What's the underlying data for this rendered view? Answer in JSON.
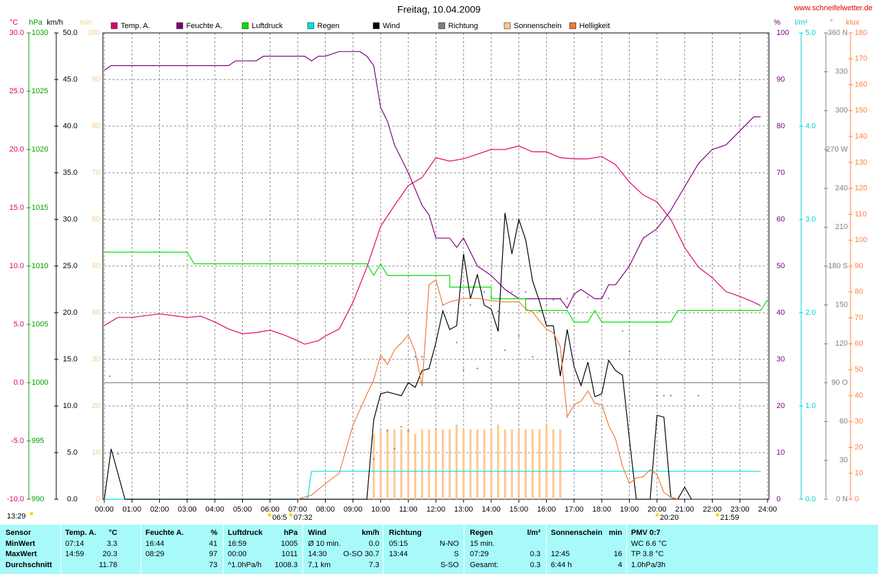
{
  "chart_data": {
    "type": "line",
    "title": "Freitag, 10.04.2009",
    "source": "www.schneifelwetter.de",
    "grid": true,
    "grid_axis": "km/h",
    "xlim": [
      0,
      24
    ],
    "xticks": [
      {
        "value": 0,
        "label": "00:00"
      },
      {
        "value": 1,
        "label": "01:00"
      },
      {
        "value": 2,
        "label": "02:00"
      },
      {
        "value": 3,
        "label": "03:00"
      },
      {
        "value": 4,
        "label": "04:00"
      },
      {
        "value": 5,
        "label": "05:00"
      },
      {
        "value": 6,
        "label": "06:00"
      },
      {
        "value": 7,
        "label": "07:00"
      },
      {
        "value": 8,
        "label": "08:00"
      },
      {
        "value": 9,
        "label": "09:00"
      },
      {
        "value": 10,
        "label": "10:00"
      },
      {
        "value": 11,
        "label": "11:00"
      },
      {
        "value": 12,
        "label": "12:00"
      },
      {
        "value": 13,
        "label": "13:00"
      },
      {
        "value": 14,
        "label": "14:00"
      },
      {
        "value": 15,
        "label": "15:00"
      },
      {
        "value": 16,
        "label": "16:00"
      },
      {
        "value": 17,
        "label": "17:00"
      },
      {
        "value": 18,
        "label": "18:00"
      },
      {
        "value": 19,
        "label": "19:00"
      },
      {
        "value": 20,
        "label": "20:00"
      },
      {
        "value": 21,
        "label": "21:00"
      },
      {
        "value": 22,
        "label": "22:00"
      },
      {
        "value": 23,
        "label": "23:00"
      },
      {
        "value": 24,
        "label": "24:00"
      }
    ],
    "axes": [
      {
        "label": "°C",
        "color": "#e00070",
        "zero_line": true,
        "ylim": [
          -10,
          30
        ],
        "yticks": [
          {
            "value": -10,
            "label": "-10.0"
          },
          {
            "value": -5,
            "label": "-5.0"
          },
          {
            "value": 0,
            "label": "0.0"
          },
          {
            "value": 5,
            "label": "5.0"
          },
          {
            "value": 10,
            "label": "10.0"
          },
          {
            "value": 15,
            "label": "15.0"
          },
          {
            "value": 20,
            "label": "20.0"
          },
          {
            "value": 25,
            "label": "25.0"
          },
          {
            "value": 30,
            "label": "30.0"
          }
        ]
      },
      {
        "label": "hPa",
        "color": "#00a000",
        "ylim": [
          990,
          1030
        ],
        "yticks": [
          990,
          995,
          1000,
          1005,
          1010,
          1015,
          1020,
          1025,
          1030
        ]
      },
      {
        "label": "km/h",
        "color": "#000000",
        "ylim": [
          0,
          50
        ],
        "yticks": [
          {
            "value": 0,
            "label": "0.0"
          },
          {
            "value": 5,
            "label": "5.0"
          },
          {
            "value": 10,
            "label": "10.0"
          },
          {
            "value": 15,
            "label": "15.0"
          },
          {
            "value": 20,
            "label": "20.0"
          },
          {
            "value": 25,
            "label": "25.0"
          },
          {
            "value": 30,
            "label": "30.0"
          },
          {
            "value": 35,
            "label": "35.0"
          },
          {
            "value": 40,
            "label": "40.0"
          },
          {
            "value": 45,
            "label": "45.0"
          },
          {
            "value": 50,
            "label": "50.0"
          }
        ]
      },
      {
        "label": "min",
        "color": "#f8c890",
        "ylim": [
          0,
          100
        ],
        "yticks": [
          0,
          10,
          20,
          30,
          40,
          50,
          60,
          70,
          80,
          90,
          100
        ]
      },
      {
        "label": "%",
        "color": "#800080",
        "ylim": [
          0,
          100
        ],
        "yticks": [
          0,
          10,
          20,
          30,
          40,
          50,
          60,
          70,
          80,
          90,
          100
        ]
      },
      {
        "label": "l/m²",
        "color": "#00d0d0",
        "ylim": [
          0,
          5
        ],
        "yticks": [
          {
            "value": 0,
            "label": "0.0"
          },
          {
            "value": 1,
            "label": "1.0"
          },
          {
            "value": 2,
            "label": "2.0"
          },
          {
            "value": 3,
            "label": "3.0"
          },
          {
            "value": 4,
            "label": "4.0"
          },
          {
            "value": 5,
            "label": "5.0"
          }
        ]
      },
      {
        "label": "°",
        "color": "#808080",
        "ylim": [
          0,
          360
        ],
        "yticks": [
          {
            "value": 0,
            "label": "0 N"
          },
          30,
          60,
          {
            "value": 90,
            "label": "90 O"
          },
          120,
          150,
          {
            "value": 180,
            "label": "180 S"
          },
          210,
          240,
          {
            "value": 270,
            "label": "270 W"
          },
          300,
          330,
          {
            "value": 360,
            "label": "360 N"
          }
        ]
      },
      {
        "label": "klux",
        "color": "#ff8040",
        "ylim": [
          0,
          180
        ],
        "yticks": [
          0,
          10,
          20,
          30,
          40,
          50,
          60,
          70,
          80,
          90,
          100,
          110,
          120,
          130,
          140,
          150,
          160,
          170,
          180
        ]
      }
    ],
    "series": [
      {
        "name": "Temp. A.",
        "color": "#e0006f",
        "axis": "°C",
        "style": "line",
        "x": [
          0,
          0.5,
          1,
          2,
          3,
          3.5,
          4,
          4.5,
          5,
          5.5,
          6,
          6.5,
          7,
          7.25,
          7.75,
          8,
          8.5,
          9,
          9.5,
          10,
          10.5,
          11,
          11.5,
          12,
          12.5,
          13,
          13.5,
          14,
          14.5,
          15,
          15.5,
          16,
          16.5,
          17,
          17.5,
          18,
          18.5,
          19,
          19.5,
          20,
          20.5,
          21,
          21.5,
          22,
          22.5,
          23,
          23.5,
          23.75
        ],
        "values": [
          4.9,
          5.6,
          5.6,
          5.9,
          5.6,
          5.7,
          5.2,
          4.6,
          4.2,
          4.3,
          4.5,
          4.1,
          3.6,
          3.3,
          3.6,
          4.0,
          4.6,
          6.9,
          9.9,
          13.4,
          15.2,
          16.9,
          17.6,
          19.3,
          19.0,
          19.2,
          19.6,
          20.0,
          20.0,
          20.3,
          19.8,
          19.8,
          19.3,
          19.2,
          19.2,
          19.4,
          18.7,
          17.2,
          16.1,
          15.5,
          14.0,
          11.6,
          9.9,
          9.0,
          7.8,
          7.4,
          6.9,
          6.6
        ]
      },
      {
        "name": "Feuchte A.",
        "color": "#800080",
        "axis": "%",
        "style": "line",
        "x": [
          0,
          0.25,
          4.5,
          4.75,
          5.5,
          5.75,
          7.25,
          7.5,
          7.75,
          8,
          8.5,
          9.25,
          9.5,
          9.75,
          10,
          10.25,
          10.5,
          11,
          11.5,
          11.75,
          12,
          12.5,
          12.75,
          13,
          13.25,
          13.5,
          14,
          14.5,
          15,
          16.5,
          16.75,
          17,
          17.25,
          17.5,
          17.75,
          18,
          18.25,
          18.5,
          19,
          19.5,
          20,
          20.5,
          21,
          21.5,
          22,
          22.5,
          23,
          23.5,
          23.75
        ],
        "values": [
          92,
          93,
          93,
          94,
          94,
          95,
          95,
          94,
          95,
          95,
          96,
          96,
          95,
          93,
          84,
          81,
          76,
          70,
          63,
          61,
          56,
          56,
          54,
          56,
          53,
          50,
          48,
          45,
          43,
          43,
          41,
          44,
          45,
          44,
          43,
          43,
          46,
          46,
          50,
          56,
          58,
          62,
          67,
          72,
          75,
          76,
          79,
          82,
          82
        ]
      },
      {
        "name": "Luftdruck",
        "color": "#00e000",
        "axis": "hPa",
        "style": "line",
        "x": [
          0,
          3,
          3.25,
          9.5,
          9.75,
          10,
          10.25,
          12.5,
          12.5,
          14,
          14,
          15.25,
          15.25,
          16.75,
          17,
          17.5,
          17.75,
          18,
          20.5,
          20.75,
          23.75,
          24
        ],
        "values": [
          1011.2,
          1011.2,
          1010.2,
          1010.2,
          1009.2,
          1010.2,
          1009.2,
          1009.2,
          1008.2,
          1008.2,
          1007.2,
          1007.2,
          1006.2,
          1006.2,
          1005.2,
          1005.2,
          1006.2,
          1005.2,
          1005.2,
          1006.2,
          1006.2,
          1007.1
        ]
      },
      {
        "name": "Regen",
        "color": "#00e0e0",
        "axis": "l/m²",
        "style": "line",
        "x": [
          0,
          7.35,
          7.5,
          23.75
        ],
        "values": [
          0,
          0,
          0.3,
          0.3
        ]
      },
      {
        "name": "Wind",
        "color": "#000000",
        "axis": "km/h",
        "style": "line",
        "x": [
          0,
          0.25,
          0.75,
          9.5,
          9.75,
          10,
          10.25,
          10.5,
          10.75,
          11,
          11.25,
          11.5,
          11.75,
          12,
          12.25,
          12.5,
          12.75,
          13,
          13.25,
          13.5,
          13.75,
          14,
          14.25,
          14.5,
          14.75,
          15,
          15.25,
          15.5,
          15.75,
          16,
          16.25,
          16.5,
          16.75,
          17,
          17.25,
          17.5,
          17.75,
          18,
          18.25,
          18.5,
          18.75,
          19,
          19.25,
          19.75,
          20,
          20.25,
          20.5,
          20.75,
          21,
          21.25
        ],
        "values": [
          0,
          5.4,
          0,
          0,
          8.5,
          11.3,
          11.5,
          11.3,
          11.1,
          12.5,
          12,
          13.8,
          14,
          16.8,
          20.2,
          18.2,
          18.6,
          26.3,
          21.5,
          24.1,
          20.8,
          20.4,
          18,
          30.7,
          26.3,
          30,
          27.8,
          23.4,
          21.2,
          18.6,
          18.6,
          13.2,
          18.2,
          14.2,
          12.2,
          14.7,
          11,
          11.3,
          14.9,
          13.8,
          13.3,
          6.5,
          0,
          0,
          9,
          8.8,
          0.2,
          0,
          1.3,
          0
        ]
      },
      {
        "name": "Richtung",
        "color": "#808080",
        "axis": "°",
        "style": "dots",
        "x": [
          0.2,
          0.5,
          9.75,
          10.25,
          10.5,
          10.75,
          11,
          11.25,
          11.5,
          12.25,
          12.75,
          13,
          13.25,
          13.5,
          13.75,
          14,
          14.25,
          14.5,
          14.75,
          15,
          15.25,
          15.5,
          15.75,
          16,
          16.25,
          16.5,
          16.75,
          17,
          17.5,
          18,
          18.25,
          18.75,
          19,
          20,
          20.25,
          20.5,
          21.5
        ],
        "values": [
          95,
          35,
          31,
          53,
          39,
          56,
          53,
          110,
          110,
          150,
          121,
          100,
          150,
          101,
          160,
          156,
          145,
          115,
          160,
          126,
          160,
          110,
          145,
          150,
          154,
          155,
          155,
          158,
          156,
          156,
          155,
          130,
          114,
          80,
          80,
          80,
          80
        ]
      },
      {
        "name": "Sonnenschein",
        "color": "#ffc890",
        "axis": "min",
        "style": "bar",
        "x": [
          9.75,
          10,
          10.25,
          10.5,
          10.75,
          11,
          11.25,
          11.5,
          11.75,
          12,
          12.25,
          12.5,
          12.75,
          13,
          13.25,
          13.5,
          13.75,
          14,
          14.25,
          14.5,
          14.75,
          15,
          15.25,
          15.5,
          15.75,
          16,
          16.25,
          16.5
        ],
        "values": [
          14,
          15,
          15,
          15,
          15,
          15,
          14,
          15,
          15,
          15,
          15,
          15,
          16,
          15,
          15,
          15,
          15,
          15,
          16,
          15,
          15,
          15,
          15,
          15,
          15,
          16,
          15,
          15
        ]
      },
      {
        "name": "Helligkeit",
        "color": "#f07838",
        "axis": "klux",
        "style": "line",
        "x": [
          7,
          7.5,
          8,
          8.5,
          9,
          9.5,
          9.75,
          10,
          10.25,
          10.5,
          10.75,
          11,
          11.25,
          11.5,
          11.75,
          12,
          12.25,
          12.5,
          13,
          13.5,
          14,
          14.5,
          15,
          15.25,
          15.5,
          16,
          16.25,
          16.5,
          16.75,
          17,
          17.25,
          17.5,
          17.75,
          18,
          18.25,
          18.5,
          18.75,
          19,
          19.25,
          19.5,
          19.75,
          20,
          20.25,
          20.5,
          20.75
        ],
        "values": [
          0,
          1.6,
          6,
          10,
          28.6,
          40.5,
          46,
          55.6,
          52,
          57.7,
          60.3,
          63.5,
          57,
          43.7,
          82.8,
          84.7,
          74.9,
          76.2,
          77.5,
          77.5,
          76.7,
          76.2,
          76.2,
          73.5,
          72.2,
          65.6,
          64.3,
          59,
          31.7,
          36.5,
          37.8,
          41.8,
          37,
          36.5,
          28.6,
          23.3,
          12.7,
          6.1,
          8.2,
          8.7,
          11.4,
          9.5,
          2.6,
          0.8,
          0
        ]
      }
    ],
    "annotations": [
      "06:5",
      "07:32",
      "20:20",
      "21:59",
      "13:29"
    ]
  },
  "table": {
    "columns": [
      {
        "header": {
          "left": "Sensor"
        },
        "rows": [
          {
            "left": "MinWert"
          },
          {
            "left": "MaxWert"
          },
          {
            "left": "Durchschnitt"
          }
        ]
      },
      {
        "header": {
          "left": "Temp. A.",
          "right": "°C"
        },
        "rows": [
          {
            "left": "07:14",
            "right": "3.3"
          },
          {
            "left": "14:59",
            "right": "20.3"
          },
          {
            "right": "11.78"
          }
        ]
      },
      {
        "header": {
          "left": "Feuchte A.",
          "right": "%"
        },
        "rows": [
          {
            "left": "16:44",
            "right": "41"
          },
          {
            "left": "08:29",
            "right": "97"
          },
          {
            "right": "73"
          }
        ]
      },
      {
        "header": {
          "left": "Luftdruck",
          "right": "hPa"
        },
        "rows": [
          {
            "left": "16:59",
            "right": "1005"
          },
          {
            "left": "00:00",
            "right": "1011"
          },
          {
            "left": "^1.0hPa/h",
            "right": "1008.3"
          }
        ]
      },
      {
        "header": {
          "left": "Wind",
          "right": "km/h"
        },
        "rows": [
          {
            "left": "Ø 10 min.",
            "right": "0.0"
          },
          {
            "left": "14:30",
            "right": "O-SO 30.7"
          },
          {
            "left": "7,1 km",
            "right": "7.3"
          }
        ]
      },
      {
        "header": {
          "left": "Richtung"
        },
        "rows": [
          {
            "left": "05:15",
            "right": "N-NO"
          },
          {
            "left": "13:44",
            "right": "S"
          },
          {
            "right": "S-SO"
          }
        ]
      },
      {
        "header": {
          "left": "Regen",
          "right": "l/m²"
        },
        "rows": [
          {
            "left": "15 min."
          },
          {
            "left": "07:29",
            "right": "0.3"
          },
          {
            "left": "Gesamt:",
            "right": "0.3"
          }
        ]
      },
      {
        "header": {
          "left": "Sonnenschein",
          "right": "min"
        },
        "rows": [
          {},
          {
            "left": "12:45",
            "right": "16"
          },
          {
            "left": "6:44 h",
            "right": "4"
          }
        ]
      },
      {
        "header": {
          "left": "PMV 0:7"
        },
        "rows": [
          {
            "left": "WC 6.6 °C"
          },
          {
            "left": "TP 3.8 °C"
          },
          {
            "left": "1.0hPa/3h"
          }
        ]
      }
    ]
  }
}
